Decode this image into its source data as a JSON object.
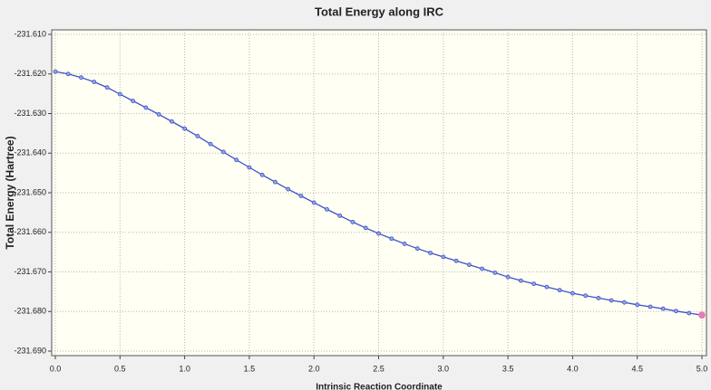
{
  "chart_data": {
    "type": "line",
    "title": "Total Energy along IRC",
    "x_label": "Intrinsic Reaction Coordinate",
    "y_label": "Total Energy (Hartree)",
    "x": [
      0,
      0.1,
      0.2,
      0.3,
      0.4,
      0.5,
      0.6,
      0.7,
      0.8,
      0.9,
      1.0,
      1.1,
      1.2,
      1.3,
      1.4,
      1.5,
      1.6,
      1.7,
      1.8,
      1.9,
      2.0,
      2.1,
      2.2,
      2.3,
      2.4,
      2.5,
      2.6,
      2.7,
      2.8,
      2.9,
      3.0,
      3.1,
      3.2,
      3.3,
      3.4,
      3.5,
      3.6,
      3.7,
      3.8,
      3.9,
      4.0,
      4.1,
      4.2,
      4.3,
      4.4,
      4.5,
      4.6,
      4.7,
      4.8,
      4.9,
      5.0
    ],
    "series": [
      {
        "color": "#3f51c8",
        "marker_color": "#8fa8e0",
        "selected_color": "#e87ab8",
        "selected": 50,
        "values": [
          -231.6194,
          -231.62,
          -231.6209,
          -231.622,
          -231.6234,
          -231.6251,
          -231.6268,
          -231.6285,
          -231.6302,
          -231.632,
          -231.6338,
          -231.6357,
          -231.6377,
          -231.6397,
          -231.6417,
          -231.6436,
          -231.6455,
          -231.6473,
          -231.6491,
          -231.6508,
          -231.6525,
          -231.6542,
          -231.6558,
          -231.6574,
          -231.6589,
          -231.6603,
          -231.6616,
          -231.6629,
          -231.6641,
          -231.6652,
          -231.6662,
          -231.6672,
          -231.6682,
          -231.6692,
          -231.6702,
          -231.6713,
          -231.6722,
          -231.673,
          -231.6738,
          -231.6746,
          -231.6754,
          -231.676,
          -231.6766,
          -231.6772,
          -231.6777,
          -231.6783,
          -231.6788,
          -231.6793,
          -231.6799,
          -231.6804,
          -231.6809
        ]
      }
    ],
    "xlim": [
      0,
      5
    ],
    "ylim": [
      -231.69,
      -231.61
    ],
    "xticks": [
      {
        "value": 0,
        "label": "0.0"
      },
      0.5,
      {
        "value": 1,
        "label": "1.0"
      },
      1.5,
      {
        "value": 2,
        "label": "2.0"
      },
      2.5,
      {
        "value": 3,
        "label": "3.0"
      },
      3.5,
      {
        "value": 4,
        "label": "4.0"
      },
      4.5,
      {
        "value": 5,
        "label": "5.0"
      }
    ],
    "yticks": [
      {
        "value": -231.61,
        "label": "-231.610"
      },
      {
        "value": -231.62,
        "label": "-231.620"
      },
      {
        "value": -231.63,
        "label": "-231.630"
      },
      {
        "value": -231.64,
        "label": "-231.640"
      },
      {
        "value": -231.65,
        "label": "-231.650"
      },
      {
        "value": -231.66,
        "label": "-231.660"
      },
      {
        "value": -231.67,
        "label": "-231.670"
      },
      {
        "value": -231.68,
        "label": "-231.680"
      },
      {
        "value": -231.69,
        "label": "-231.690"
      }
    ],
    "grid": true
  }
}
